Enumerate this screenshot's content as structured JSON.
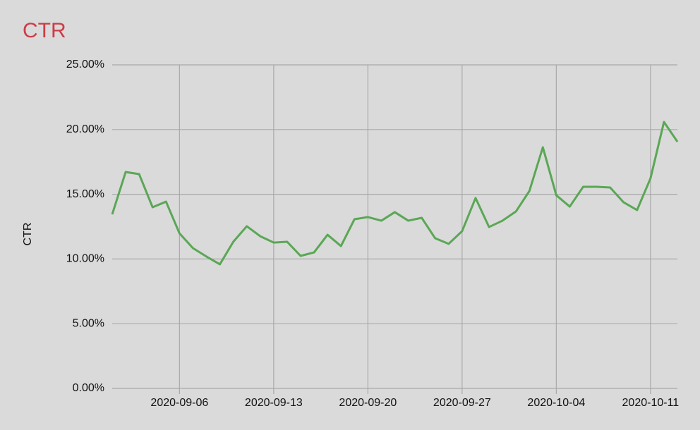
{
  "chart_data": {
    "type": "line",
    "title": "CTR",
    "title_color": "#cc3d47",
    "y_label": "CTR",
    "x": [
      "2020-09-01",
      "2020-09-02",
      "2020-09-03",
      "2020-09-04",
      "2020-09-05",
      "2020-09-06",
      "2020-09-07",
      "2020-09-08",
      "2020-09-09",
      "2020-09-10",
      "2020-09-11",
      "2020-09-12",
      "2020-09-13",
      "2020-09-14",
      "2020-09-15",
      "2020-09-16",
      "2020-09-17",
      "2020-09-18",
      "2020-09-19",
      "2020-09-20",
      "2020-09-21",
      "2020-09-22",
      "2020-09-23",
      "2020-09-24",
      "2020-09-25",
      "2020-09-26",
      "2020-09-27",
      "2020-09-28",
      "2020-09-29",
      "2020-09-30",
      "2020-10-01",
      "2020-10-02",
      "2020-10-03",
      "2020-10-04",
      "2020-10-05",
      "2020-10-06",
      "2020-10-07",
      "2020-10-08",
      "2020-10-09",
      "2020-10-10",
      "2020-10-11",
      "2020-10-12",
      "2020-10-13"
    ],
    "series": [
      {
        "name": "CTR",
        "color": "#5aa755",
        "values": [
          13.45,
          16.72,
          16.56,
          14.0,
          14.43,
          11.98,
          10.84,
          10.19,
          9.59,
          11.33,
          12.53,
          11.76,
          11.27,
          11.33,
          10.24,
          10.51,
          11.87,
          11.0,
          13.07,
          13.24,
          12.96,
          13.62,
          12.96,
          13.18,
          11.6,
          11.17,
          12.15,
          14.71,
          12.47,
          12.96,
          13.67,
          15.25,
          18.63,
          14.92,
          14.05,
          15.58,
          15.58,
          15.52,
          14.38,
          13.78,
          16.23,
          20.59,
          19.06
        ]
      }
    ],
    "xticks": [
      "2020-09-06",
      "2020-09-13",
      "2020-09-20",
      "2020-09-27",
      "2020-10-04",
      "2020-10-11"
    ],
    "ylim": [
      0,
      25
    ],
    "yticks": [
      {
        "value": 0,
        "label": "0.00%"
      },
      {
        "value": 5,
        "label": "5.00%"
      },
      {
        "value": 10,
        "label": "10.00%"
      },
      {
        "value": 15,
        "label": "15.00%"
      },
      {
        "value": 20,
        "label": "20.00%"
      },
      {
        "value": 25,
        "label": "25.00%"
      }
    ],
    "grid": true
  }
}
